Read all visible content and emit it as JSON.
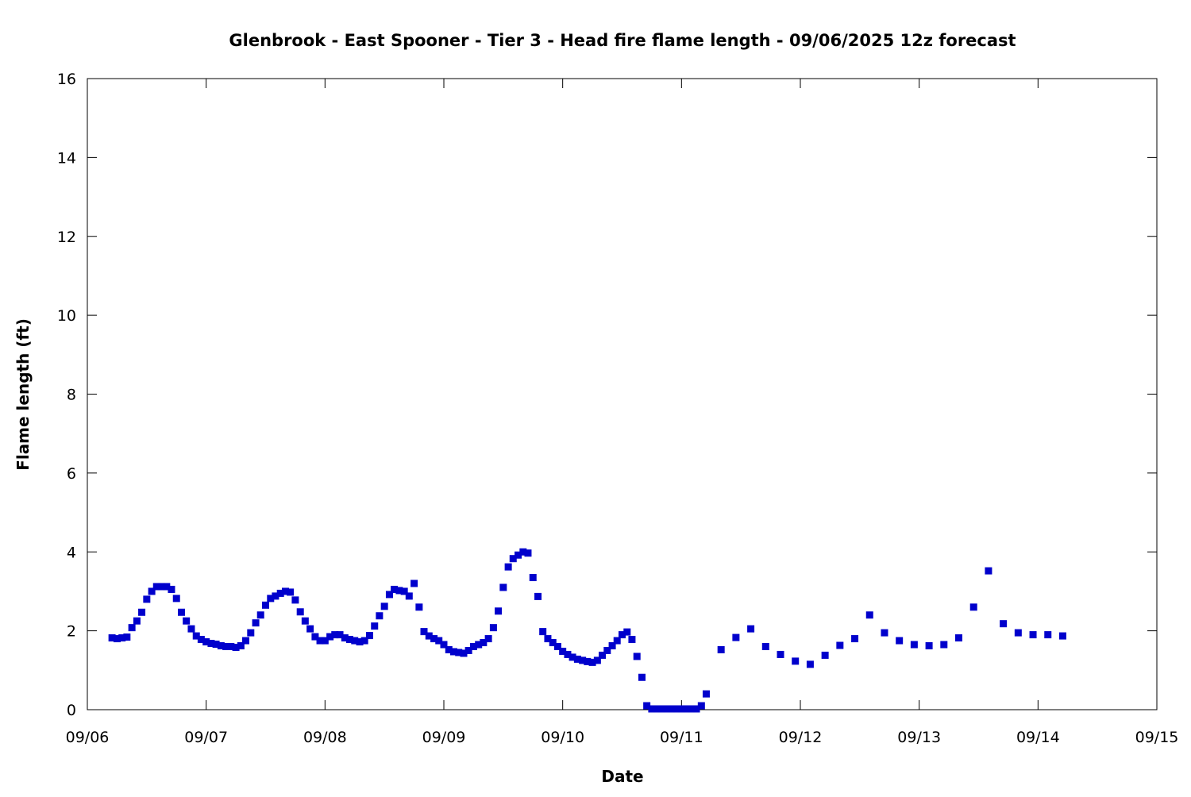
{
  "chart_data": {
    "type": "scatter",
    "title": "Glenbrook - East Spooner - Tier 3 - Head fire flame length - 09/06/2025 12z forecast",
    "xlabel": "Date",
    "ylabel": "Flame length (ft)",
    "x_unit": "days after 09/06",
    "xlim": [
      0,
      9
    ],
    "ylim": [
      0,
      16
    ],
    "x_ticks": [
      {
        "value": 0,
        "label": "09/06"
      },
      {
        "value": 1,
        "label": "09/07"
      },
      {
        "value": 2,
        "label": "09/08"
      },
      {
        "value": 3,
        "label": "09/09"
      },
      {
        "value": 4,
        "label": "09/10"
      },
      {
        "value": 5,
        "label": "09/11"
      },
      {
        "value": 6,
        "label": "09/12"
      },
      {
        "value": 7,
        "label": "09/13"
      },
      {
        "value": 8,
        "label": "09/14"
      },
      {
        "value": 9,
        "label": "09/15"
      }
    ],
    "y_ticks": [
      "0",
      "2",
      "4",
      "6",
      "8",
      "10",
      "12",
      "14",
      "16"
    ],
    "grid": false,
    "marker_color": "#0000cc",
    "series": [
      {
        "x": [
          0.208,
          0.25,
          0.292,
          0.333,
          0.375,
          0.417,
          0.458,
          0.5,
          0.542,
          0.583,
          0.625,
          0.667,
          0.708,
          0.75,
          0.792,
          0.833,
          0.875,
          0.917,
          0.958,
          1.0,
          1.042,
          1.083,
          1.125,
          1.167,
          1.208,
          1.25,
          1.292,
          1.333,
          1.375,
          1.417,
          1.458,
          1.5,
          1.542,
          1.583,
          1.625,
          1.667,
          1.708,
          1.75,
          1.792,
          1.833,
          1.875,
          1.917,
          1.958,
          2.0,
          2.042,
          2.083,
          2.125,
          2.167,
          2.208,
          2.25,
          2.292,
          2.333,
          2.375,
          2.417,
          2.458,
          2.5,
          2.542,
          2.583,
          2.625,
          2.667,
          2.708,
          2.75,
          2.792,
          2.833,
          2.875,
          2.917,
          2.958,
          3.0,
          3.042,
          3.083,
          3.125,
          3.167,
          3.208,
          3.25,
          3.292,
          3.333,
          3.375,
          3.417,
          3.458,
          3.5,
          3.542,
          3.583,
          3.625,
          3.667,
          3.708,
          3.75,
          3.792,
          3.833,
          3.875,
          3.917,
          3.958,
          4.0,
          4.042,
          4.083,
          4.125,
          4.167,
          4.208,
          4.25,
          4.292,
          4.333,
          4.375,
          4.417,
          4.458,
          4.5,
          4.542,
          4.583,
          4.625,
          4.667,
          4.708,
          4.75,
          4.792,
          4.833,
          4.875,
          4.917,
          4.958,
          5.0,
          5.042,
          5.083,
          5.125,
          5.167,
          5.208,
          5.333,
          5.458,
          5.583,
          5.708,
          5.833,
          5.958,
          6.083,
          6.208,
          6.333,
          6.458,
          6.583,
          6.708,
          6.833,
          6.958,
          7.083,
          7.208,
          7.333,
          7.458,
          7.583,
          7.708,
          7.833,
          7.958,
          8.083,
          8.208
        ],
        "y": [
          1.82,
          1.8,
          1.82,
          1.84,
          2.08,
          2.25,
          2.47,
          2.8,
          3.0,
          3.12,
          3.12,
          3.12,
          3.05,
          2.82,
          2.47,
          2.25,
          2.05,
          1.87,
          1.78,
          1.72,
          1.68,
          1.66,
          1.62,
          1.6,
          1.6,
          1.58,
          1.62,
          1.75,
          1.95,
          2.2,
          2.4,
          2.65,
          2.82,
          2.88,
          2.95,
          3.0,
          2.98,
          2.78,
          2.48,
          2.25,
          2.05,
          1.85,
          1.75,
          1.75,
          1.85,
          1.9,
          1.9,
          1.82,
          1.78,
          1.75,
          1.72,
          1.75,
          1.88,
          2.12,
          2.38,
          2.62,
          2.92,
          3.05,
          3.02,
          3.0,
          2.88,
          3.2,
          2.6,
          1.98,
          1.87,
          1.8,
          1.75,
          1.65,
          1.52,
          1.47,
          1.45,
          1.43,
          1.5,
          1.6,
          1.65,
          1.7,
          1.8,
          2.08,
          2.5,
          3.1,
          3.62,
          3.83,
          3.92,
          4.0,
          3.97,
          3.35,
          2.87,
          1.98,
          1.8,
          1.7,
          1.6,
          1.48,
          1.4,
          1.33,
          1.28,
          1.25,
          1.22,
          1.2,
          1.25,
          1.38,
          1.5,
          1.62,
          1.75,
          1.9,
          1.97,
          1.78,
          1.35,
          0.82,
          0.1,
          0.02,
          0.02,
          0.02,
          0.02,
          0.02,
          0.02,
          0.02,
          0.02,
          0.02,
          0.02,
          0.1,
          0.4,
          1.52,
          1.83,
          2.05,
          1.6,
          1.4,
          1.23,
          1.15,
          1.38,
          1.63,
          1.8,
          2.4,
          1.95,
          1.75,
          1.65,
          1.62,
          1.65,
          1.82,
          2.6,
          3.52,
          2.18,
          1.95,
          1.9,
          1.9,
          1.87
        ]
      }
    ]
  }
}
